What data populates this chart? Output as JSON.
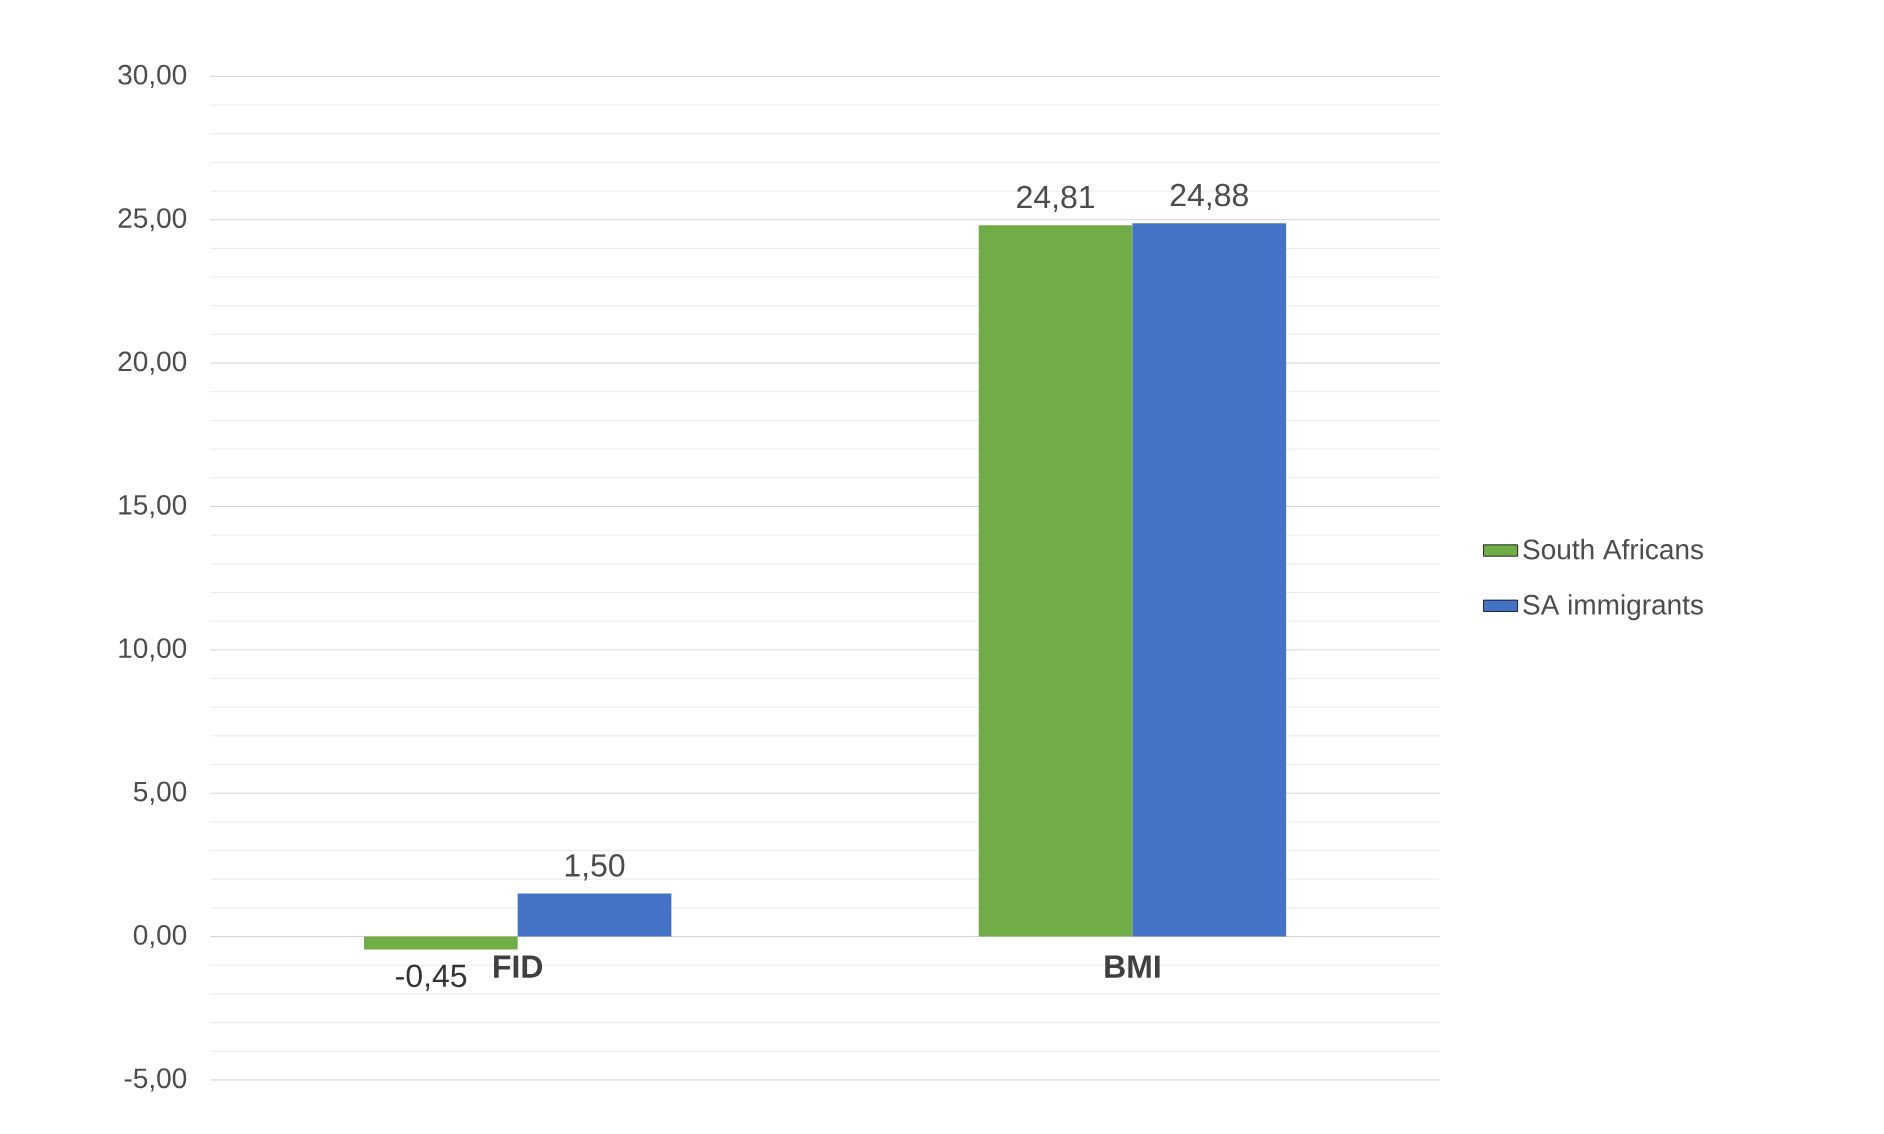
{
  "chart_data": {
    "type": "bar",
    "categories": [
      "FID",
      "BMI"
    ],
    "series": [
      {
        "name": "South Africans",
        "color": "#70ad47",
        "values": [
          -0.45,
          24.81
        ],
        "value_labels": [
          "-0,45",
          "24,81"
        ]
      },
      {
        "name": "SA immigrants",
        "color": "#4472c4",
        "values": [
          1.5,
          24.88
        ],
        "value_labels": [
          "1,50",
          "24,88"
        ]
      }
    ],
    "ylim": [
      -5,
      30
    ],
    "yticks": [
      {
        "value": -5,
        "label": "-5,00"
      },
      {
        "value": 0,
        "label": "0,00"
      },
      {
        "value": 5,
        "label": "5,00"
      },
      {
        "value": 10,
        "label": "10,00"
      },
      {
        "value": 15,
        "label": "15,00"
      },
      {
        "value": 20,
        "label": "20,00"
      },
      {
        "value": 25,
        "label": "25,00"
      },
      {
        "value": 30,
        "label": "30,00"
      }
    ],
    "grid": true,
    "legend": "right"
  }
}
